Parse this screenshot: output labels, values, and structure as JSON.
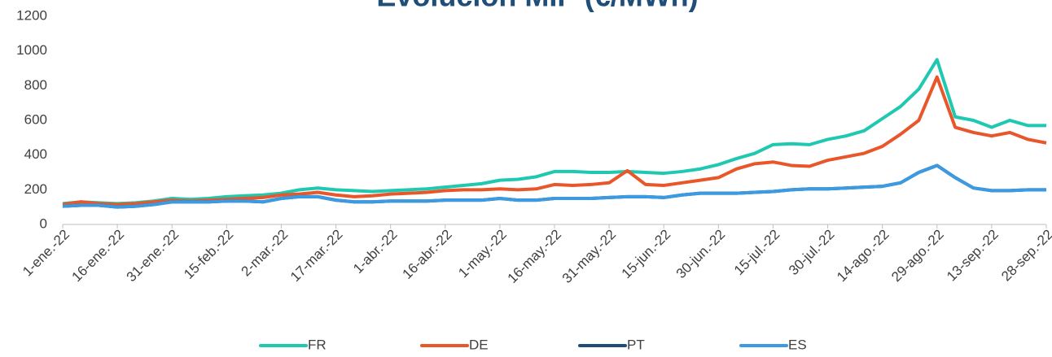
{
  "chart_data": {
    "type": "line",
    "title": "Evolución MIP (€/MWh)",
    "categories": [
      "1-ene.-22",
      null,
      null,
      "16-ene.-22",
      null,
      null,
      "31-ene.-22",
      null,
      null,
      "15-feb.-22",
      null,
      null,
      "2-mar.-22",
      null,
      null,
      "17-mar.-22",
      null,
      null,
      "1-abr.-22",
      null,
      null,
      "16-abr.-22",
      null,
      null,
      "1-may.-22",
      null,
      null,
      "16-may.-22",
      null,
      null,
      "31-may.-22",
      null,
      null,
      "15-jun.-22",
      null,
      null,
      "30-jun.-22",
      null,
      null,
      "15-jul.-22",
      null,
      null,
      "30-jul.-22",
      null,
      null,
      "14-ago.-22",
      null,
      null,
      "29-ago.-22",
      null,
      null,
      "13-sep.-22",
      null,
      null,
      "28-sep.-22"
    ],
    "series": [
      {
        "name": "FR",
        "color": "#1fc8b0",
        "values": [
          120,
          130,
          125,
          120,
          125,
          135,
          150,
          145,
          150,
          160,
          165,
          170,
          180,
          200,
          210,
          200,
          195,
          190,
          195,
          200,
          205,
          215,
          225,
          235,
          255,
          260,
          275,
          305,
          305,
          300,
          300,
          305,
          300,
          295,
          305,
          320,
          345,
          380,
          410,
          460,
          465,
          460,
          490,
          510,
          540,
          610,
          680,
          780,
          950,
          620,
          600,
          560,
          600,
          570,
          570
        ]
      },
      {
        "name": "DE",
        "color": "#e8562a",
        "values": [
          115,
          130,
          120,
          115,
          120,
          130,
          140,
          135,
          140,
          145,
          150,
          155,
          170,
          175,
          185,
          170,
          160,
          165,
          175,
          180,
          185,
          195,
          200,
          200,
          205,
          200,
          205,
          230,
          225,
          230,
          240,
          310,
          230,
          225,
          240,
          255,
          270,
          320,
          350,
          360,
          340,
          335,
          370,
          390,
          410,
          450,
          520,
          600,
          850,
          560,
          530,
          510,
          530,
          490,
          470
        ]
      },
      {
        "name": "PT",
        "color": "#1f4e79",
        "values": [
          105,
          110,
          110,
          100,
          105,
          115,
          130,
          130,
          130,
          135,
          135,
          130,
          150,
          160,
          160,
          140,
          130,
          130,
          135,
          135,
          135,
          140,
          140,
          140,
          150,
          140,
          140,
          150,
          150,
          150,
          155,
          160,
          160,
          155,
          170,
          180,
          180,
          180,
          185,
          190,
          200,
          205,
          205,
          210,
          215,
          220,
          240,
          300,
          340,
          270,
          210,
          195,
          195,
          200,
          200
        ]
      },
      {
        "name": "ES",
        "color": "#3b9ae1",
        "values": [
          105,
          110,
          110,
          100,
          105,
          115,
          130,
          130,
          130,
          135,
          135,
          130,
          150,
          160,
          160,
          140,
          130,
          130,
          135,
          135,
          135,
          140,
          140,
          140,
          150,
          140,
          140,
          150,
          150,
          150,
          155,
          160,
          160,
          155,
          170,
          180,
          180,
          180,
          185,
          190,
          200,
          205,
          205,
          210,
          215,
          220,
          240,
          300,
          340,
          270,
          210,
          195,
          195,
          200,
          200
        ]
      }
    ],
    "ylim": [
      0,
      1200
    ],
    "yticks": [
      0,
      200,
      400,
      600,
      800,
      1000,
      1200
    ],
    "legend": "bottom"
  }
}
